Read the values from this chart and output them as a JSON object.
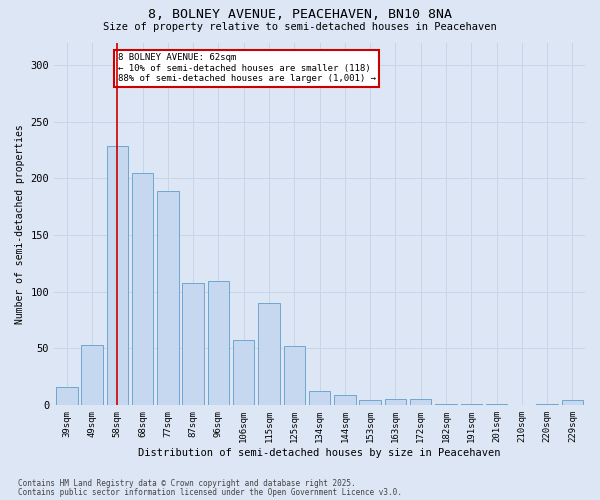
{
  "title1": "8, BOLNEY AVENUE, PEACEHAVEN, BN10 8NA",
  "title2": "Size of property relative to semi-detached houses in Peacehaven",
  "xlabel": "Distribution of semi-detached houses by size in Peacehaven",
  "ylabel": "Number of semi-detached properties",
  "categories": [
    "39sqm",
    "49sqm",
    "58sqm",
    "68sqm",
    "77sqm",
    "87sqm",
    "96sqm",
    "106sqm",
    "115sqm",
    "125sqm",
    "134sqm",
    "144sqm",
    "153sqm",
    "163sqm",
    "172sqm",
    "182sqm",
    "191sqm",
    "201sqm",
    "210sqm",
    "220sqm",
    "229sqm"
  ],
  "values": [
    16,
    53,
    229,
    205,
    189,
    108,
    109,
    57,
    90,
    52,
    12,
    9,
    4,
    5,
    5,
    1,
    1,
    1,
    0,
    1,
    4
  ],
  "bar_color": "#c5d8f0",
  "bar_edge_color": "#6ea6d0",
  "redline_index": 2,
  "annotation_title": "8 BOLNEY AVENUE: 62sqm",
  "annotation_line1": "← 10% of semi-detached houses are smaller (118)",
  "annotation_line2": "88% of semi-detached houses are larger (1,001) →",
  "annotation_box_color": "#ffffff",
  "annotation_box_edge": "#cc0000",
  "redline_color": "#cc0000",
  "ylim": [
    0,
    320
  ],
  "yticks": [
    0,
    50,
    100,
    150,
    200,
    250,
    300
  ],
  "grid_color": "#c8d4e8",
  "background_color": "#dce6f5",
  "footer1": "Contains HM Land Registry data © Crown copyright and database right 2025.",
  "footer2": "Contains public sector information licensed under the Open Government Licence v3.0."
}
